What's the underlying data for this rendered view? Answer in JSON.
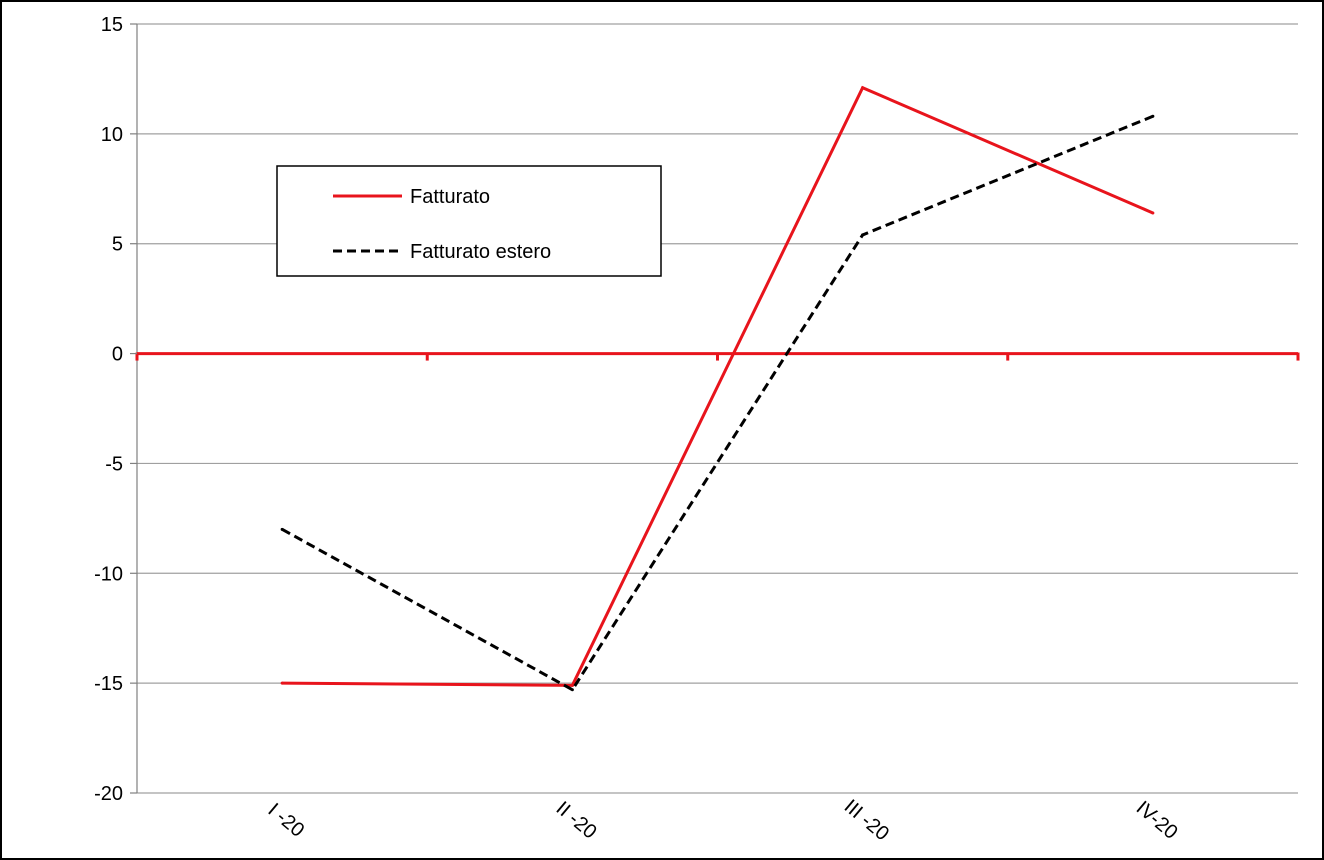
{
  "chart_data": {
    "type": "line",
    "title": "",
    "xlabel": "",
    "ylabel": "",
    "categories": [
      "I -20",
      "II -20",
      "III -20",
      "IV-20"
    ],
    "ylim": [
      -20,
      15
    ],
    "yticks": [
      "15",
      "10",
      "5",
      "0",
      "-5",
      "-10",
      "-15",
      "-20"
    ],
    "ytick_values": [
      15,
      10,
      5,
      0,
      -5,
      -10,
      -15,
      -20
    ],
    "grid": true,
    "legend_position": "top-left",
    "series": [
      {
        "name": "Fatturato",
        "values": [
          -15.0,
          -15.1,
          12.1,
          6.4
        ],
        "color": "#e8141c",
        "style": "solid"
      },
      {
        "name": "Fatturato estero",
        "values": [
          -8.0,
          -15.3,
          5.4,
          10.8
        ],
        "color": "#000000",
        "style": "dashed"
      }
    ],
    "zero_line_color": "#e8141c",
    "grid_color": "#a0a0a0"
  }
}
